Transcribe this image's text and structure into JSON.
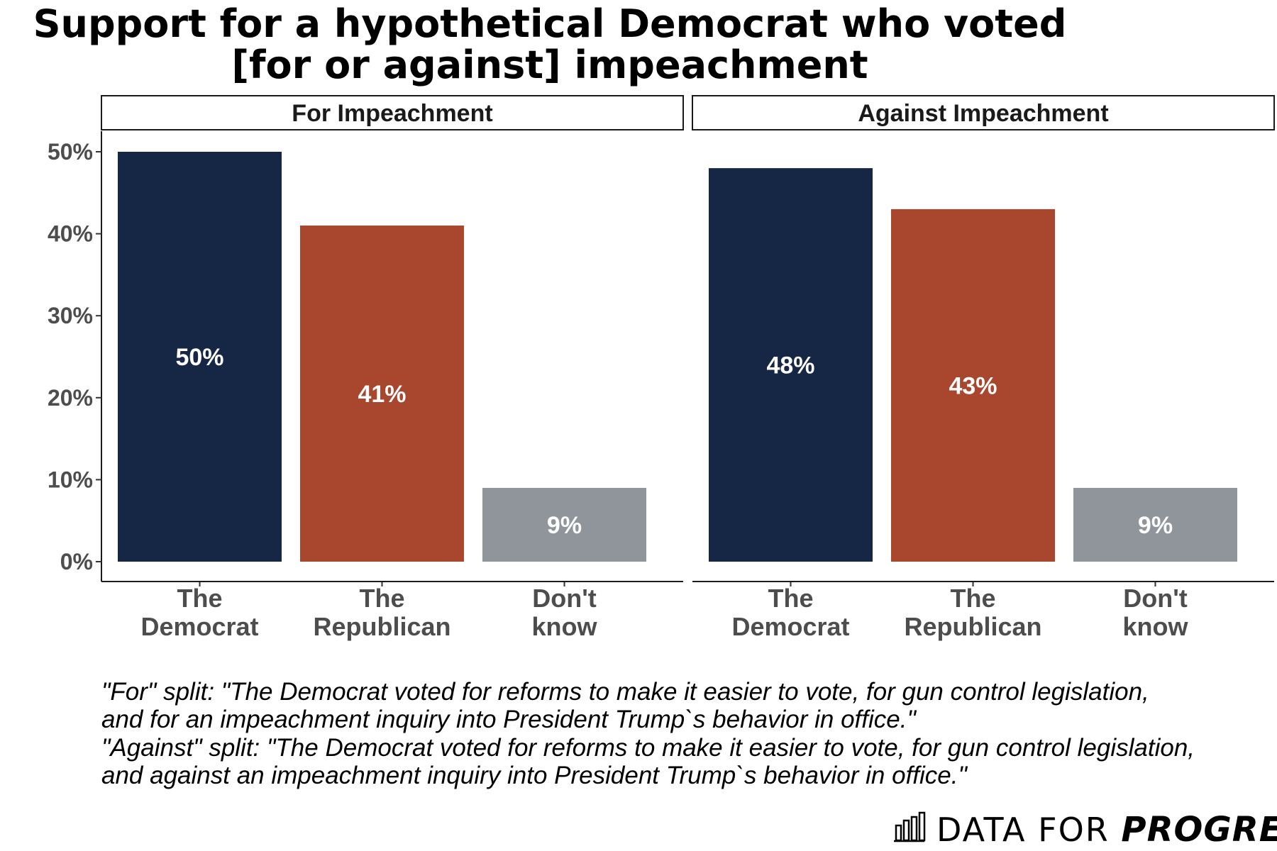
{
  "chart_data": {
    "type": "bar",
    "title_lines": [
      "Support for a hypothetical Democrat who voted",
      "[for or against] impeachment"
    ],
    "categories": [
      [
        "The",
        "Democrat"
      ],
      [
        "The",
        "Republican"
      ],
      [
        "Don't",
        "know"
      ]
    ],
    "colors": [
      "#162745",
      "#a8462e",
      "#8f959b"
    ],
    "ylim": [
      0,
      52
    ],
    "yticks": [
      0,
      10,
      20,
      30,
      40,
      50
    ],
    "ytick_labels": [
      "0%",
      "10%",
      "20%",
      "30%",
      "40%",
      "50%"
    ],
    "xlabel": "",
    "ylabel": "",
    "grid": false,
    "panels": [
      {
        "name": "For Impeachment",
        "values": [
          50,
          41,
          9
        ],
        "labels": [
          "50%",
          "41%",
          "9%"
        ]
      },
      {
        "name": "Against Impeachment",
        "values": [
          48,
          43,
          9
        ],
        "labels": [
          "48%",
          "43%",
          "9%"
        ]
      }
    ]
  },
  "notes": [
    "\"For\" split: \"The Democrat voted for reforms to make it easier to vote, for gun control legislation,",
    "and for an impeachment inquiry into President Trump`s behavior in office.\"",
    "\"Against\" split: \"The Democrat voted for reforms to make it easier to vote, for gun control legislation,",
    "and against an impeachment inquiry into President Trump`s behavior in office.\""
  ],
  "brand": {
    "light": "DATA FOR ",
    "bold": "PROGRESS",
    "icon": "bar-chart-logo-icon"
  }
}
